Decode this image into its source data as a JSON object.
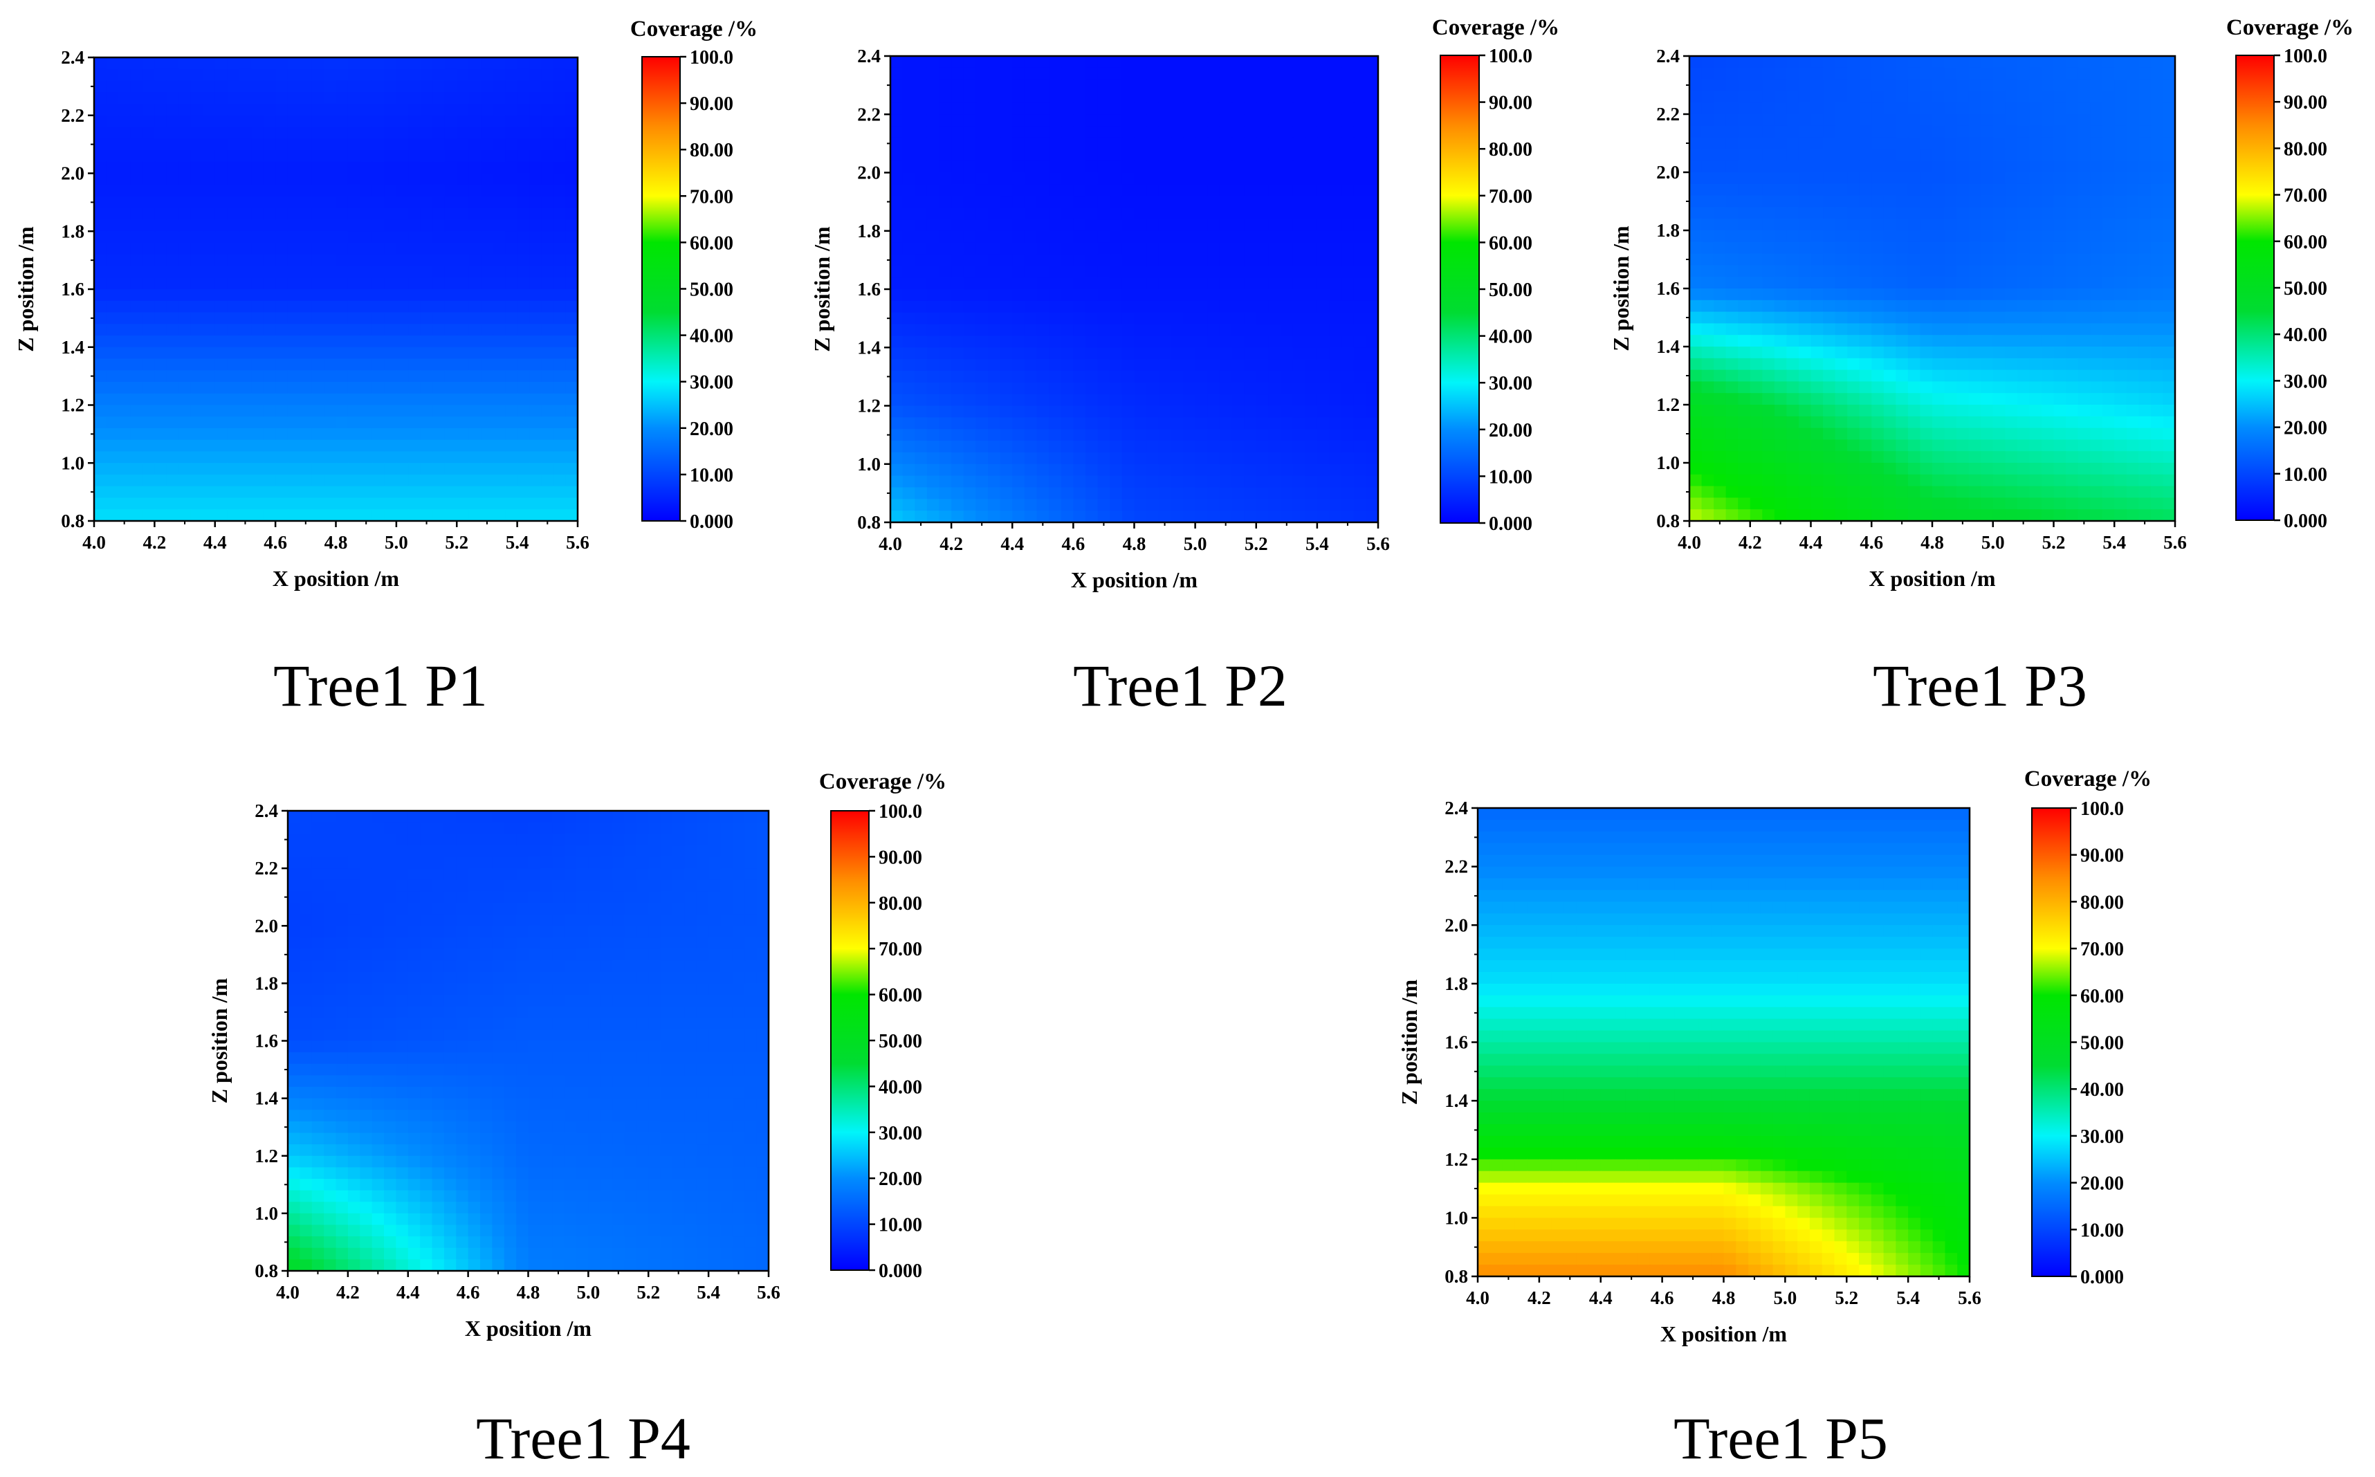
{
  "chart_data": [
    {
      "type": "heatmap",
      "caption": "Tree1 P1",
      "xlabel": "X position /m",
      "ylabel": "Z position /m",
      "xlim": [
        4.0,
        5.6
      ],
      "ylim": [
        0.8,
        2.4
      ],
      "x_ticks": [
        "4.0",
        "4.2",
        "4.4",
        "4.6",
        "4.8",
        "5.0",
        "5.2",
        "5.4",
        "5.6"
      ],
      "y_ticks": [
        "0.8",
        "1.0",
        "1.2",
        "1.4",
        "1.6",
        "1.8",
        "2.0",
        "2.2",
        "2.4"
      ],
      "colorbar": {
        "title": "Coverage /%",
        "min": 0,
        "max": 100,
        "ticks": [
          "0.000",
          "10.00",
          "20.00",
          "30.00",
          "40.00",
          "50.00",
          "60.00",
          "70.00",
          "80.00",
          "90.00",
          "100.0"
        ]
      },
      "x": [
        4.0,
        4.8,
        5.6
      ],
      "y": [
        0.8,
        1.2,
        1.6,
        2.0,
        2.4
      ],
      "z": [
        [
          28,
          28,
          28
        ],
        [
          18,
          18,
          18
        ],
        [
          6,
          6,
          6
        ],
        [
          4,
          4,
          3
        ],
        [
          6,
          7,
          5
        ]
      ]
    },
    {
      "type": "heatmap",
      "caption": "Tree1 P2",
      "xlabel": "X position /m",
      "ylabel": "Z position /m",
      "xlim": [
        4.0,
        5.6
      ],
      "ylim": [
        0.8,
        2.4
      ],
      "x_ticks": [
        "4.0",
        "4.2",
        "4.4",
        "4.6",
        "4.8",
        "5.0",
        "5.2",
        "5.4",
        "5.6"
      ],
      "y_ticks": [
        "0.8",
        "1.0",
        "1.2",
        "1.4",
        "1.6",
        "1.8",
        "2.0",
        "2.2",
        "2.4"
      ],
      "colorbar": {
        "title": "Coverage /%",
        "min": 0,
        "max": 100,
        "ticks": [
          "0.000",
          "10.00",
          "20.00",
          "30.00",
          "40.00",
          "50.00",
          "60.00",
          "70.00",
          "80.00",
          "90.00",
          "100.0"
        ]
      },
      "x": [
        4.0,
        4.8,
        5.6
      ],
      "y": [
        0.8,
        1.2,
        1.6,
        2.0,
        2.4
      ],
      "z": [
        [
          26,
          10,
          7
        ],
        [
          12,
          6,
          4
        ],
        [
          4,
          3,
          3
        ],
        [
          3,
          2,
          2
        ],
        [
          3,
          2,
          2
        ]
      ]
    },
    {
      "type": "heatmap",
      "caption": "Tree1 P3",
      "xlabel": "X position /m",
      "ylabel": "Z position /m",
      "xlim": [
        4.0,
        5.6
      ],
      "ylim": [
        0.8,
        2.4
      ],
      "x_ticks": [
        "4.0",
        "4.2",
        "4.4",
        "4.6",
        "4.8",
        "5.0",
        "5.2",
        "5.4",
        "5.6"
      ],
      "y_ticks": [
        "0.8",
        "1.0",
        "1.2",
        "1.4",
        "1.6",
        "1.8",
        "2.0",
        "2.2",
        "2.4"
      ],
      "colorbar": {
        "title": "Coverage /%",
        "min": 0,
        "max": 100,
        "ticks": [
          "0.000",
          "10.00",
          "20.00",
          "30.00",
          "40.00",
          "50.00",
          "60.00",
          "70.00",
          "80.00",
          "90.00",
          "100.0"
        ]
      },
      "x": [
        4.0,
        4.8,
        5.6
      ],
      "y": [
        0.8,
        1.2,
        1.6,
        2.0,
        2.4
      ],
      "z": [
        [
          68,
          48,
          42
        ],
        [
          50,
          32,
          27
        ],
        [
          18,
          14,
          17
        ],
        [
          12,
          12,
          15
        ],
        [
          10,
          13,
          15
        ]
      ]
    },
    {
      "type": "heatmap",
      "caption": "Tree1 P4",
      "xlabel": "X position /m",
      "ylabel": "Z position /m",
      "xlim": [
        4.0,
        5.6
      ],
      "ylim": [
        0.8,
        2.4
      ],
      "x_ticks": [
        "4.0",
        "4.2",
        "4.4",
        "4.6",
        "4.8",
        "5.0",
        "5.2",
        "5.4",
        "5.6"
      ],
      "y_ticks": [
        "0.8",
        "1.0",
        "1.2",
        "1.4",
        "1.6",
        "1.8",
        "2.0",
        "2.2",
        "2.4"
      ],
      "colorbar": {
        "title": "Coverage /%",
        "min": 0,
        "max": 100,
        "ticks": [
          "0.000",
          "10.00",
          "20.00",
          "30.00",
          "40.00",
          "50.00",
          "60.00",
          "70.00",
          "80.00",
          "90.00",
          "100.0"
        ]
      },
      "x": [
        4.0,
        4.8,
        5.6
      ],
      "y": [
        0.8,
        1.2,
        1.6,
        2.0,
        2.4
      ],
      "z": [
        [
          48,
          18,
          15
        ],
        [
          26,
          15,
          14
        ],
        [
          11,
          13,
          13
        ],
        [
          9,
          11,
          12
        ],
        [
          10,
          9,
          12
        ]
      ]
    },
    {
      "type": "heatmap",
      "caption": "Tree1 P5",
      "xlabel": "X position /m",
      "ylabel": "Z position /m",
      "xlim": [
        4.0,
        5.6
      ],
      "ylim": [
        0.8,
        2.4
      ],
      "x_ticks": [
        "4.0",
        "4.2",
        "4.4",
        "4.6",
        "4.8",
        "5.0",
        "5.2",
        "5.4",
        "5.6"
      ],
      "y_ticks": [
        "0.8",
        "1.0",
        "1.2",
        "1.4",
        "1.6",
        "1.8",
        "2.0",
        "2.2",
        "2.4"
      ],
      "colorbar": {
        "title": "Coverage /%",
        "min": 0,
        "max": 100,
        "ticks": [
          "0.000",
          "10.00",
          "20.00",
          "30.00",
          "40.00",
          "50.00",
          "60.00",
          "70.00",
          "80.00",
          "90.00",
          "100.0"
        ]
      },
      "x": [
        4.0,
        4.8,
        5.6
      ],
      "y": [
        0.8,
        1.1,
        1.4,
        1.8,
        2.4
      ],
      "z": [
        [
          85,
          85,
          60
        ],
        [
          70,
          70,
          55
        ],
        [
          45,
          45,
          45
        ],
        [
          28,
          28,
          28
        ],
        [
          15,
          15,
          15
        ]
      ]
    }
  ]
}
